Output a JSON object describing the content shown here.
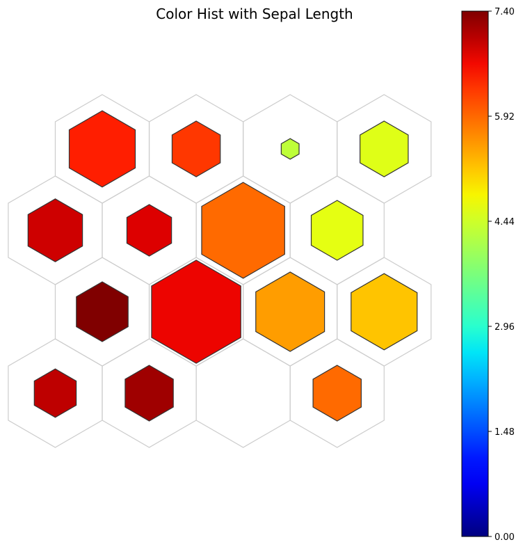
{
  "chart_data": {
    "type": "heatmap",
    "subtype": "hexagonal self-organizing map",
    "title": "Color Hist with Sepal Length",
    "colormap": "jet",
    "grid_rows": 4,
    "grid_cols": 4,
    "colorbar": {
      "min": 0.0,
      "max": 7.4,
      "ticks": [
        "0.00",
        "1.48",
        "2.96",
        "4.44",
        "5.92",
        "7.40"
      ],
      "position": "right"
    },
    "cells": [
      {
        "row": 0,
        "col": 0,
        "value": 6.5,
        "relative_size": 0.74,
        "filled": true
      },
      {
        "row": 0,
        "col": 1,
        "value": 6.3,
        "relative_size": 0.54,
        "filled": true
      },
      {
        "row": 0,
        "col": 2,
        "value": 4.3,
        "relative_size": 0.2,
        "filled": true
      },
      {
        "row": 0,
        "col": 3,
        "value": 4.6,
        "relative_size": 0.54,
        "filled": true
      },
      {
        "row": 1,
        "col": 0,
        "value": 6.9,
        "relative_size": 0.61,
        "filled": true
      },
      {
        "row": 1,
        "col": 1,
        "value": 6.8,
        "relative_size": 0.5,
        "filled": true
      },
      {
        "row": 1,
        "col": 2,
        "value": 5.9,
        "relative_size": 0.93,
        "filled": true
      },
      {
        "row": 1,
        "col": 3,
        "value": 4.65,
        "relative_size": 0.58,
        "filled": true
      },
      {
        "row": 2,
        "col": 0,
        "value": 7.4,
        "relative_size": 0.58,
        "filled": true
      },
      {
        "row": 2,
        "col": 1,
        "value": 6.7,
        "relative_size": 1.0,
        "filled": true
      },
      {
        "row": 2,
        "col": 2,
        "value": 5.5,
        "relative_size": 0.77,
        "filled": true
      },
      {
        "row": 2,
        "col": 3,
        "value": 5.2,
        "relative_size": 0.74,
        "filled": true
      },
      {
        "row": 3,
        "col": 0,
        "value": 7.0,
        "relative_size": 0.47,
        "filled": true
      },
      {
        "row": 3,
        "col": 1,
        "value": 7.2,
        "relative_size": 0.54,
        "filled": true
      },
      {
        "row": 3,
        "col": 2,
        "value": null,
        "relative_size": 0.0,
        "filled": false
      },
      {
        "row": 3,
        "col": 3,
        "value": 5.9,
        "relative_size": 0.54,
        "filled": true
      }
    ]
  }
}
